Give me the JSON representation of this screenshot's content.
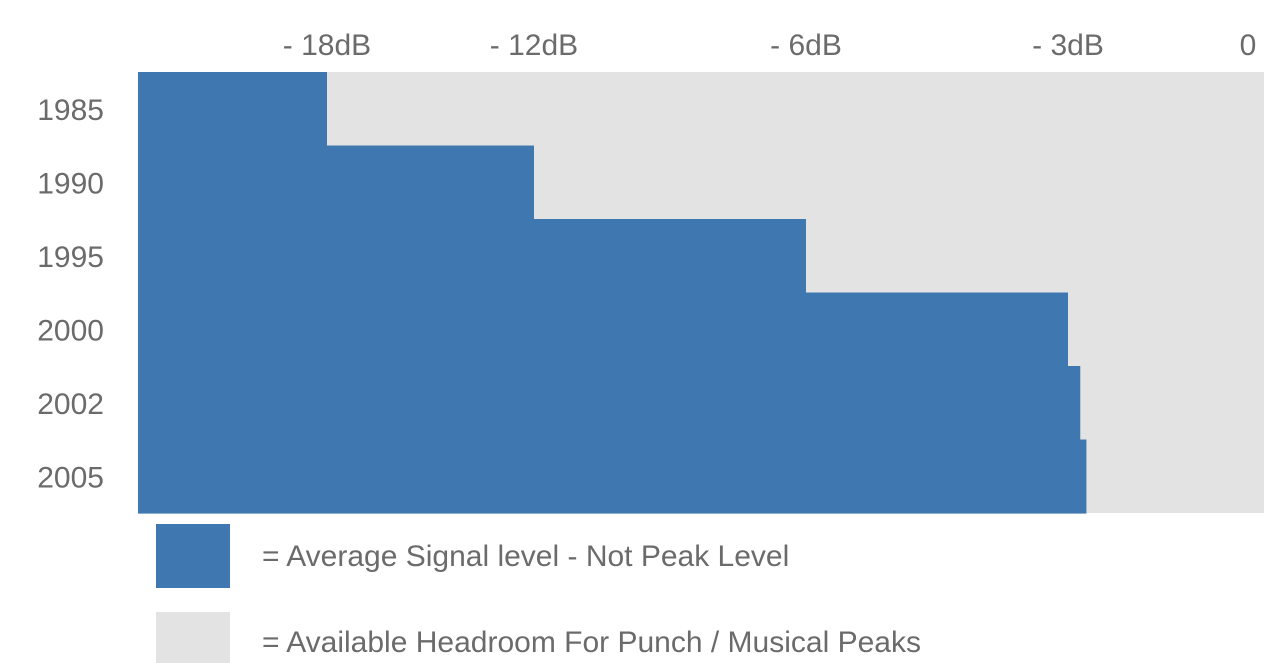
{
  "chart_data": {
    "type": "bar",
    "orientation": "horizontal",
    "stacked": true,
    "categories": [
      "1985",
      "1990",
      "1995",
      "2000",
      "2002",
      "2005"
    ],
    "x_ticks": [
      "- 18dB",
      "- 12dB",
      "- 6dB",
      "- 3dB",
      "0"
    ],
    "series": [
      {
        "name": "= Average Signal level - Not Peak Level",
        "color": "#3f78b0",
        "values": [
          -18,
          -12,
          -6,
          -3,
          -2.8,
          -2.7
        ]
      },
      {
        "name": "= Available Headroom For Punch / Musical Peaks",
        "color": "#e3e3e3",
        "values": [
          18,
          12,
          6,
          3,
          2.8,
          2.7
        ]
      }
    ],
    "legend_position": "bottom"
  }
}
